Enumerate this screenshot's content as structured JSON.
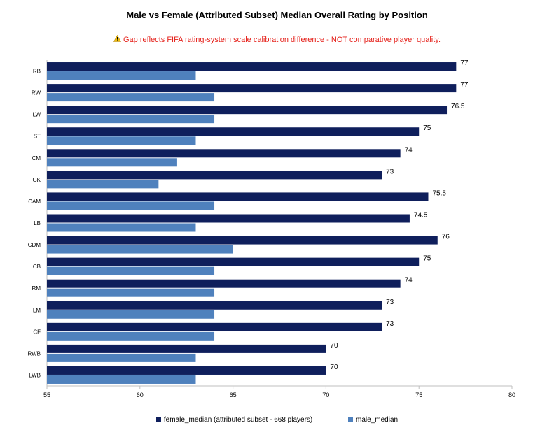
{
  "chart_data": {
    "type": "bar",
    "orientation": "horizontal",
    "title": "Male vs Female (Attributed Subset) Median Overall Rating by Position",
    "subtitle": "Gap reflects FIFA rating-system scale calibration difference - NOT comparative player quality.",
    "subtitle_icon": "warning-icon",
    "categories": [
      "RB",
      "RW",
      "LW",
      "ST",
      "CM",
      "GK",
      "CAM",
      "LB",
      "CDM",
      "CB",
      "RM",
      "LM",
      "CF",
      "RWB",
      "LWB"
    ],
    "series": [
      {
        "name": "female_median (attributed subset - 668 players)",
        "color": "#0f1f5c",
        "values": [
          77,
          77,
          76.5,
          75,
          74,
          73,
          75.5,
          74.5,
          76,
          75,
          74,
          73,
          73,
          70,
          70
        ],
        "data_labels": [
          "77",
          "77",
          "76.5",
          "75",
          "74",
          "73",
          "75.5",
          "74.5",
          "76",
          "75",
          "74",
          "73",
          "73",
          "70",
          "70"
        ]
      },
      {
        "name": "male_median",
        "color": "#4f81bd",
        "values": [
          63,
          64,
          64,
          63,
          62,
          61,
          64,
          63,
          65,
          64,
          64,
          64,
          64,
          63,
          63
        ]
      }
    ],
    "xlim": [
      55,
      80
    ],
    "xticks": [
      55,
      60,
      65,
      70,
      75,
      80
    ],
    "xtick_labels": [
      "55",
      "60",
      "65",
      "70",
      "75",
      "80"
    ],
    "xlabel": "",
    "ylabel": "",
    "grid": false,
    "legend_position": "bottom"
  }
}
